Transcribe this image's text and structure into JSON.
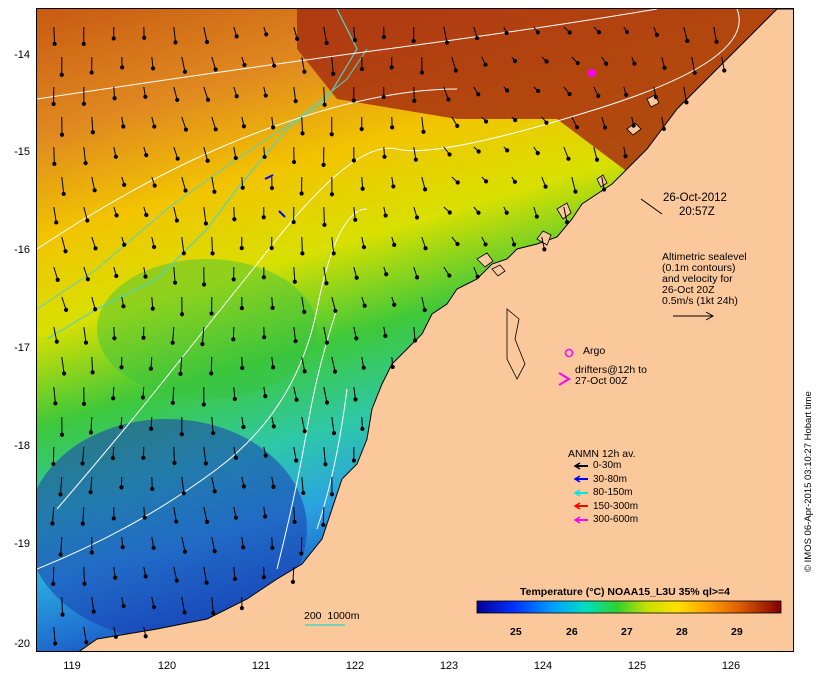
{
  "map": {
    "lat_ticks": [
      "-14",
      "-15",
      "-16",
      "-17",
      "-18",
      "-19",
      "-20"
    ],
    "lon_ticks": [
      "119",
      "120",
      "121",
      "122",
      "123",
      "124",
      "125",
      "126"
    ],
    "datetime_line1": "26-Oct-2012",
    "datetime_line2": "20:57Z",
    "altimetry_text": "Altimetric sealevel\n(0.1m contours)\nand velocity for\n26-Oct 20Z\n0.5m/s (1kt 24h)",
    "argo_label": "Argo",
    "drifters_label": "drifters@12h to\n27-Oct 00Z",
    "anmn_title": "ANMN 12h av.",
    "anmn_legend": [
      {
        "label": "0-30m",
        "color": "#000000"
      },
      {
        "label": "30-80m",
        "color": "#0000ff"
      },
      {
        "label": "80-150m",
        "color": "#00e5e5"
      },
      {
        "label": "150-300m",
        "color": "#ff0000"
      },
      {
        "label": "300-600m",
        "color": "#ff00ff"
      }
    ],
    "bathy_label": "200  1000m",
    "colorbar_title": "Temperature (°C) NOAA15_L3U 35% ql>=4",
    "colorbar_ticks": [
      "25",
      "26",
      "27",
      "28",
      "29"
    ],
    "credit": "© IMOS 06-Apr-2015 03:10:27 Hobart time",
    "colors": {
      "land": "#fbc89c",
      "argo": "#ff00ff",
      "drifter": "#ff00ff",
      "contour": "#ffffff",
      "bathy_200": "#4fd4c4"
    }
  }
}
